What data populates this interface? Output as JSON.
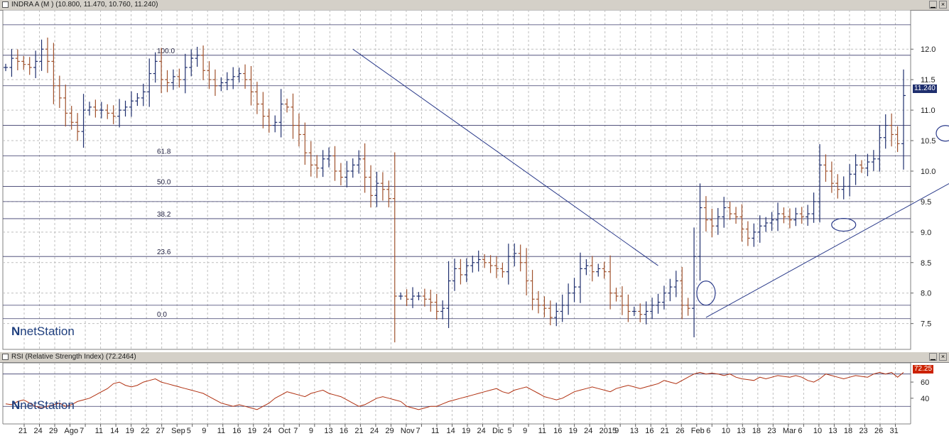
{
  "main_panel": {
    "title": "INDRA A (M ) (10.800, 11.470, 10.760, 11.240)",
    "last_price_label": "11.240",
    "watermark": "netStation",
    "fib_labels": [
      "100.0",
      "61.8",
      "50.0",
      "38.2",
      "23.6",
      "0.0"
    ]
  },
  "rsi_panel": {
    "title": "RSI (Relative Strength Index) (72.2464)",
    "last_value_label": "72.25",
    "watermark": "netStation"
  },
  "x_axis": {
    "labels": [
      "21",
      "24",
      "29",
      "Ago",
      "7",
      "11",
      "14",
      "19",
      "22",
      "27",
      "Sep",
      "5",
      "9",
      "11",
      "16",
      "19",
      "24",
      "Oct",
      "7",
      "9",
      "13",
      "16",
      "21",
      "24",
      "29",
      "Nov",
      "7",
      "11",
      "14",
      "19",
      "24",
      "Dic",
      "5",
      "9",
      "11",
      "16",
      "19",
      "24",
      "2015",
      "9",
      "13",
      "16",
      "21",
      "26",
      "Feb",
      "6",
      "10",
      "13",
      "18",
      "23",
      "Mar",
      "6",
      "10",
      "13",
      "18",
      "23",
      "26",
      "31"
    ]
  },
  "colors": {
    "up_bar": "#1f2f6e",
    "down_bar": "#a0522d",
    "trend_line": "#2a3a8a",
    "rsi_line": "#b03010",
    "grid": "#bfbfbf"
  },
  "chart_data": [
    {
      "type": "bar",
      "subtype": "ohlc",
      "ylim": [
        7.1,
        12.55
      ],
      "y_ticks": [
        7.5,
        8.0,
        8.5,
        9.0,
        9.5,
        10.0,
        10.5,
        11.0,
        11.5,
        12.0
      ],
      "grid": true,
      "horizontal_levels": [
        12.4,
        11.9,
        11.4,
        10.75,
        10.25,
        9.75,
        9.5,
        9.22,
        8.6,
        7.8,
        7.58
      ],
      "fib_levels": [
        {
          "label": "100.0",
          "value": 11.9
        },
        {
          "label": "61.8",
          "value": 10.25
        },
        {
          "label": "50.0",
          "value": 9.75
        },
        {
          "label": "38.2",
          "value": 9.22
        },
        {
          "label": "23.6",
          "value": 8.6
        },
        {
          "label": "0.0",
          "value": 7.58
        }
      ],
      "closes": [
        11.7,
        11.85,
        11.8,
        11.75,
        11.7,
        11.8,
        12.0,
        11.8,
        11.4,
        11.2,
        10.95,
        10.8,
        10.65,
        11.0,
        11.05,
        11.0,
        11.0,
        10.95,
        10.9,
        11.0,
        11.05,
        11.15,
        11.2,
        11.3,
        11.6,
        11.8,
        11.5,
        11.45,
        11.55,
        11.5,
        11.7,
        11.85,
        11.9,
        11.65,
        11.5,
        11.4,
        11.45,
        11.5,
        11.55,
        11.6,
        11.5,
        11.3,
        11.1,
        10.9,
        10.75,
        10.8,
        11.1,
        11.05,
        10.75,
        10.6,
        10.3,
        10.1,
        10.05,
        10.2,
        10.25,
        10.0,
        9.9,
        10.0,
        10.1,
        10.2,
        9.9,
        9.6,
        9.8,
        9.7,
        9.55,
        7.95,
        7.95,
        7.9,
        7.95,
        7.95,
        7.9,
        7.85,
        7.7,
        7.75,
        8.2,
        8.4,
        8.3,
        8.45,
        8.5,
        8.55,
        8.5,
        8.45,
        8.4,
        8.35,
        8.6,
        8.65,
        8.5,
        8.2,
        7.9,
        7.8,
        7.75,
        7.6,
        7.7,
        7.8,
        8.0,
        8.1,
        8.4,
        8.45,
        8.35,
        8.4,
        8.35,
        8.0,
        7.95,
        7.8,
        7.7,
        7.7,
        7.65,
        7.7,
        7.8,
        7.85,
        8.0,
        8.1,
        8.2,
        7.8,
        7.75,
        8.6,
        9.4,
        9.2,
        9.1,
        9.25,
        9.4,
        9.3,
        9.25,
        9.05,
        8.9,
        9.0,
        9.1,
        9.15,
        9.2,
        9.3,
        9.25,
        9.2,
        9.3,
        9.25,
        9.3,
        9.5,
        10.1,
        10.0,
        9.8,
        9.7,
        9.75,
        9.95,
        10.1,
        10.05,
        10.15,
        10.2,
        10.55,
        10.75,
        10.6,
        10.45,
        11.24
      ],
      "markers": [
        {
          "type": "ellipse",
          "index": 117,
          "value": 8.0
        },
        {
          "type": "ellipse",
          "index": 140,
          "value": 9.12
        },
        {
          "type": "ellipse",
          "index": 157,
          "value": 10.62
        }
      ],
      "trend_lines": [
        {
          "from_index": 58,
          "from_value": 12.0,
          "to_index": 109,
          "to_value": 8.45
        },
        {
          "from_index": 117,
          "from_value": 7.6,
          "to_index": 166,
          "to_value": 10.25
        }
      ]
    },
    {
      "type": "line",
      "title": "RSI (Relative Strength Index) (72.2464)",
      "ylim": [
        10,
        82
      ],
      "y_ticks": [
        40,
        60
      ],
      "grid": true,
      "horizontal_levels": [
        70,
        30
      ],
      "values": [
        33,
        32,
        36,
        38,
        34,
        30,
        28,
        30,
        32,
        34,
        30,
        32,
        36,
        38,
        40,
        44,
        48,
        52,
        58,
        60,
        56,
        54,
        56,
        60,
        62,
        64,
        60,
        58,
        56,
        54,
        52,
        50,
        48,
        46,
        42,
        38,
        34,
        32,
        30,
        32,
        30,
        28,
        26,
        30,
        34,
        40,
        44,
        48,
        46,
        44,
        42,
        46,
        48,
        50,
        46,
        44,
        42,
        38,
        34,
        30,
        32,
        36,
        40,
        42,
        40,
        38,
        36,
        30,
        28,
        26,
        28,
        30,
        30,
        33,
        36,
        38,
        40,
        42,
        44,
        46,
        48,
        50,
        52,
        48,
        46,
        50,
        52,
        54,
        50,
        46,
        42,
        40,
        38,
        40,
        44,
        48,
        50,
        52,
        54,
        52,
        50,
        48,
        52,
        54,
        56,
        54,
        52,
        54,
        56,
        58,
        62,
        60,
        58,
        62,
        66,
        70,
        72,
        70,
        71,
        70,
        68,
        70,
        66,
        64,
        63,
        62,
        66,
        64,
        66,
        68,
        67,
        66,
        68,
        66,
        62,
        60,
        64,
        70,
        68,
        66,
        64,
        66,
        68,
        67,
        66,
        70,
        72,
        70,
        72,
        66,
        72
      ]
    }
  ]
}
